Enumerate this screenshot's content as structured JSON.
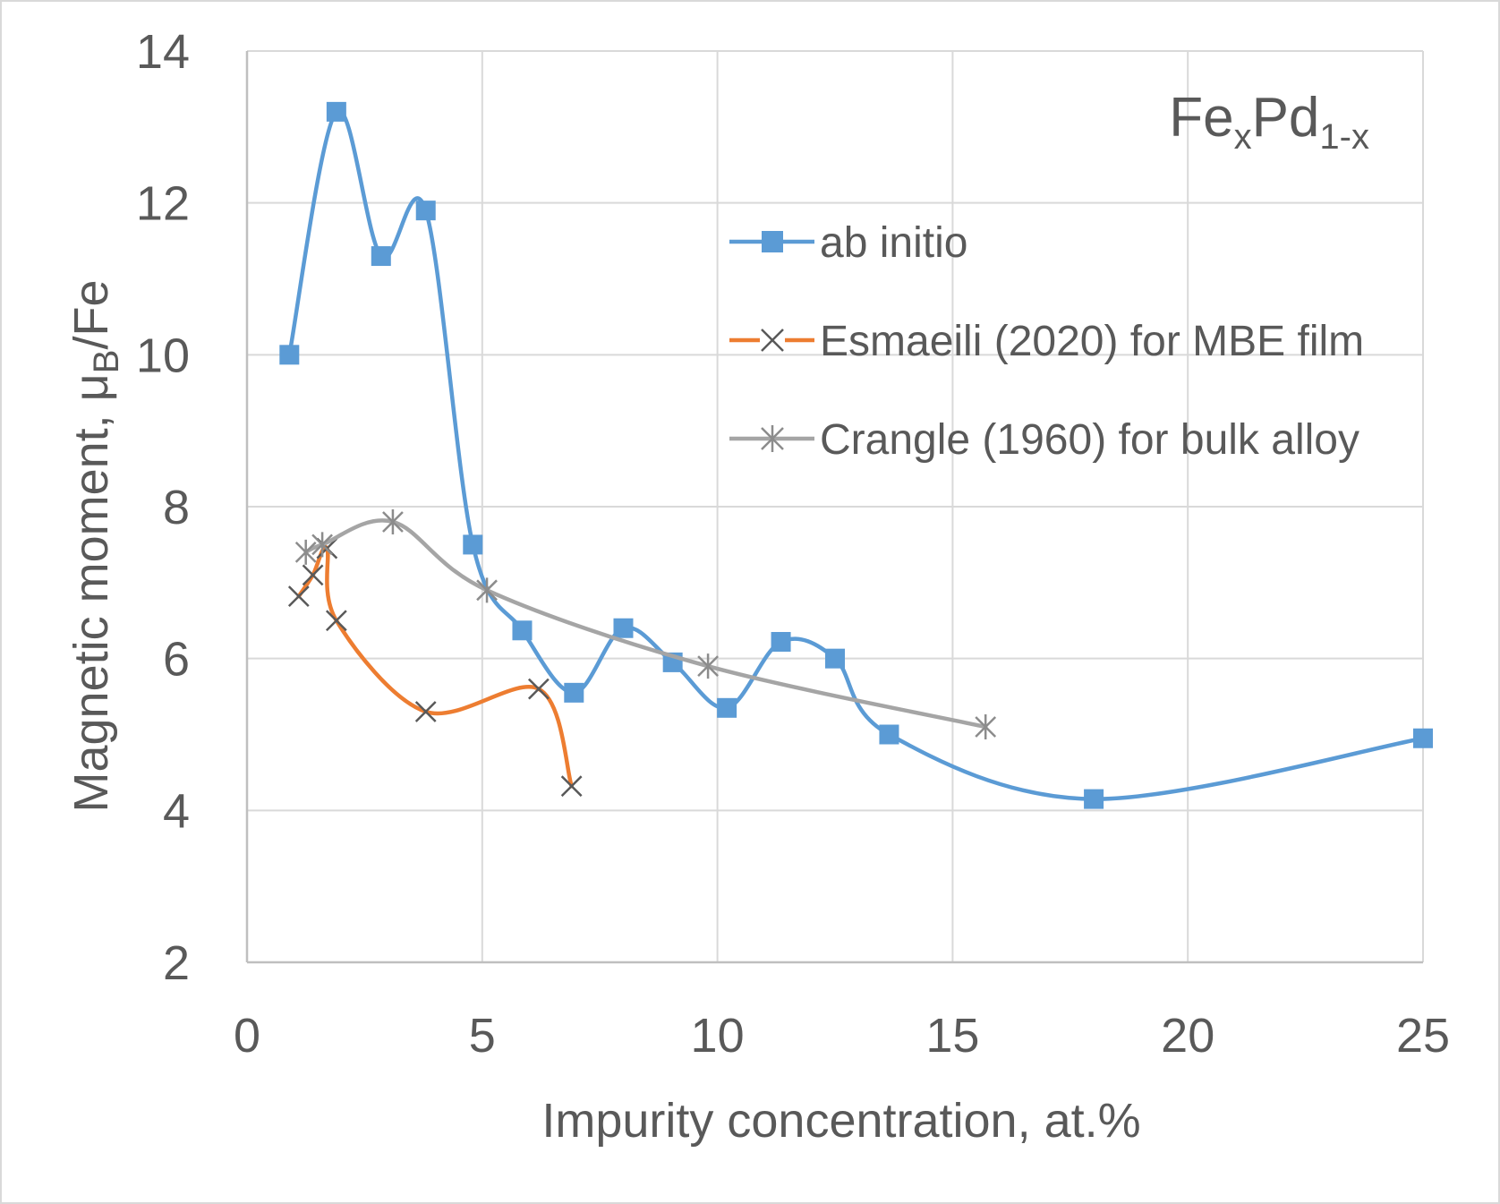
{
  "chart_data": {
    "type": "line",
    "title": "",
    "annotation": {
      "base1": "Fe",
      "sub1": "x",
      "base2": "Pd",
      "sub2": "1-x"
    },
    "xlabel": "Impurity concentration, at.%",
    "ylabel": {
      "main": "Magnetic moment, μ",
      "sub": "B",
      "tail": "/Fe"
    },
    "xlim": [
      0,
      25
    ],
    "ylim": [
      2,
      14
    ],
    "xticks": [
      0,
      5,
      10,
      15,
      20,
      25
    ],
    "yticks": [
      2,
      4,
      6,
      8,
      10,
      12,
      14
    ],
    "xtick_labels": [
      "0",
      "5",
      "10",
      "15",
      "20",
      "25"
    ],
    "ytick_labels": [
      "2",
      "4",
      "6",
      "8",
      "10",
      "12",
      "14"
    ],
    "grid": true,
    "legend_position": "top-right",
    "series": [
      {
        "name": "ab initio",
        "color": "#5b9bd5",
        "marker": "square",
        "smooth": true,
        "x": [
          0.9,
          1.9,
          2.85,
          3.8,
          4.8,
          5.85,
          6.95,
          8.0,
          9.05,
          10.2,
          11.35,
          12.5,
          13.65,
          18.0,
          25.0
        ],
        "y": [
          10.0,
          13.2,
          11.3,
          11.9,
          7.5,
          6.37,
          5.55,
          6.4,
          5.95,
          5.35,
          6.22,
          6.0,
          5.0,
          4.15,
          4.95
        ]
      },
      {
        "name": "Esmaeili (2020) for MBE film",
        "color": "#ed7d31",
        "marker": "x",
        "smooth": true,
        "x": [
          1.1,
          1.4,
          1.7,
          1.9,
          3.8,
          6.2,
          6.9
        ],
        "y": [
          6.82,
          7.1,
          7.45,
          6.5,
          5.3,
          5.6,
          4.32
        ]
      },
      {
        "name": "Crangle (1960) for bulk alloy",
        "color": "#a5a5a5",
        "marker": "star",
        "smooth": true,
        "x": [
          1.25,
          1.6,
          3.1,
          5.1,
          9.8,
          15.7
        ],
        "y": [
          7.4,
          7.5,
          7.8,
          6.9,
          5.9,
          5.1
        ]
      }
    ]
  }
}
